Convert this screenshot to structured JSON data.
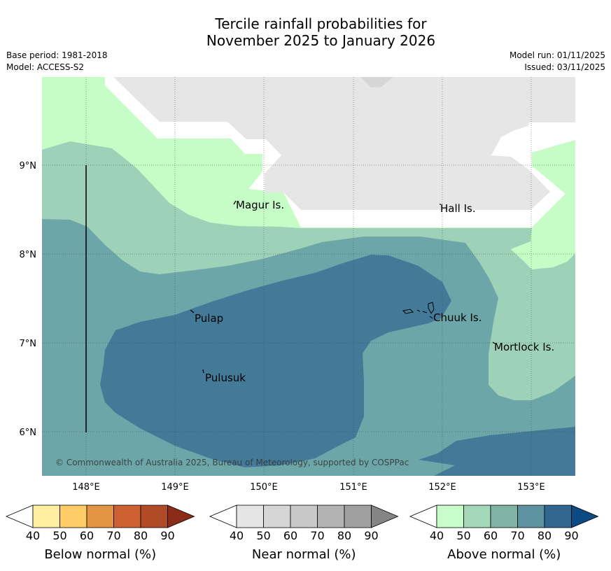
{
  "title": {
    "line1": "Tercile rainfall probabilities for",
    "line2": "November 2025 to January 2026"
  },
  "info": {
    "base_period": "Base period: 1981-2018",
    "model": "Model: ACCESS-S2",
    "model_run": "Model run: 01/11/2025",
    "issued": "Issued: 03/11/2025"
  },
  "map": {
    "lon_ticks": [
      "148°E",
      "149°E",
      "150°E",
      "151°E",
      "152°E",
      "153°E"
    ],
    "lat_ticks": [
      "9°N",
      "8°N",
      "7°N",
      "6°N"
    ],
    "places": [
      {
        "name": "Magur Is."
      },
      {
        "name": "Hall Is."
      },
      {
        "name": "Pulap"
      },
      {
        "name": "Chuuk Is."
      },
      {
        "name": "Mortlock Is."
      },
      {
        "name": "Pulusuk"
      }
    ],
    "copyright": "© Commonwealth of Australia 2025, Bureau of Meteorology, supported by COSPPac"
  },
  "colorbars": [
    {
      "name": "below",
      "label": "Below normal (%)",
      "ticks": [
        "40",
        "50",
        "60",
        "70",
        "80",
        "90"
      ],
      "colors": [
        "#ffeda0",
        "#fecc66",
        "#e39546",
        "#cd6132",
        "#b14a27",
        "#8b2c19"
      ]
    },
    {
      "name": "near",
      "label": "Near normal (%)",
      "ticks": [
        "40",
        "50",
        "60",
        "70",
        "80",
        "90"
      ],
      "colors": [
        "#e5e5e5",
        "#d6d6d6",
        "#c8c8c8",
        "#b3b3b3",
        "#a0a0a0",
        "#858585"
      ]
    },
    {
      "name": "above",
      "label": "Above normal (%)",
      "ticks": [
        "40",
        "50",
        "60",
        "70",
        "80",
        "90"
      ],
      "colors": [
        "#c8fcc8",
        "#a4d8b8",
        "#7fb3a4",
        "#5d92a0",
        "#336690",
        "#0c4a85"
      ]
    }
  ],
  "colors": {
    "above_40": "#c6fdc6",
    "above_50": "#9dd1b8",
    "above_60": "#6ca6a8",
    "above_70": "#427a98",
    "near_40": "#e6e6e6",
    "near_50": "#d6d6d6"
  }
}
